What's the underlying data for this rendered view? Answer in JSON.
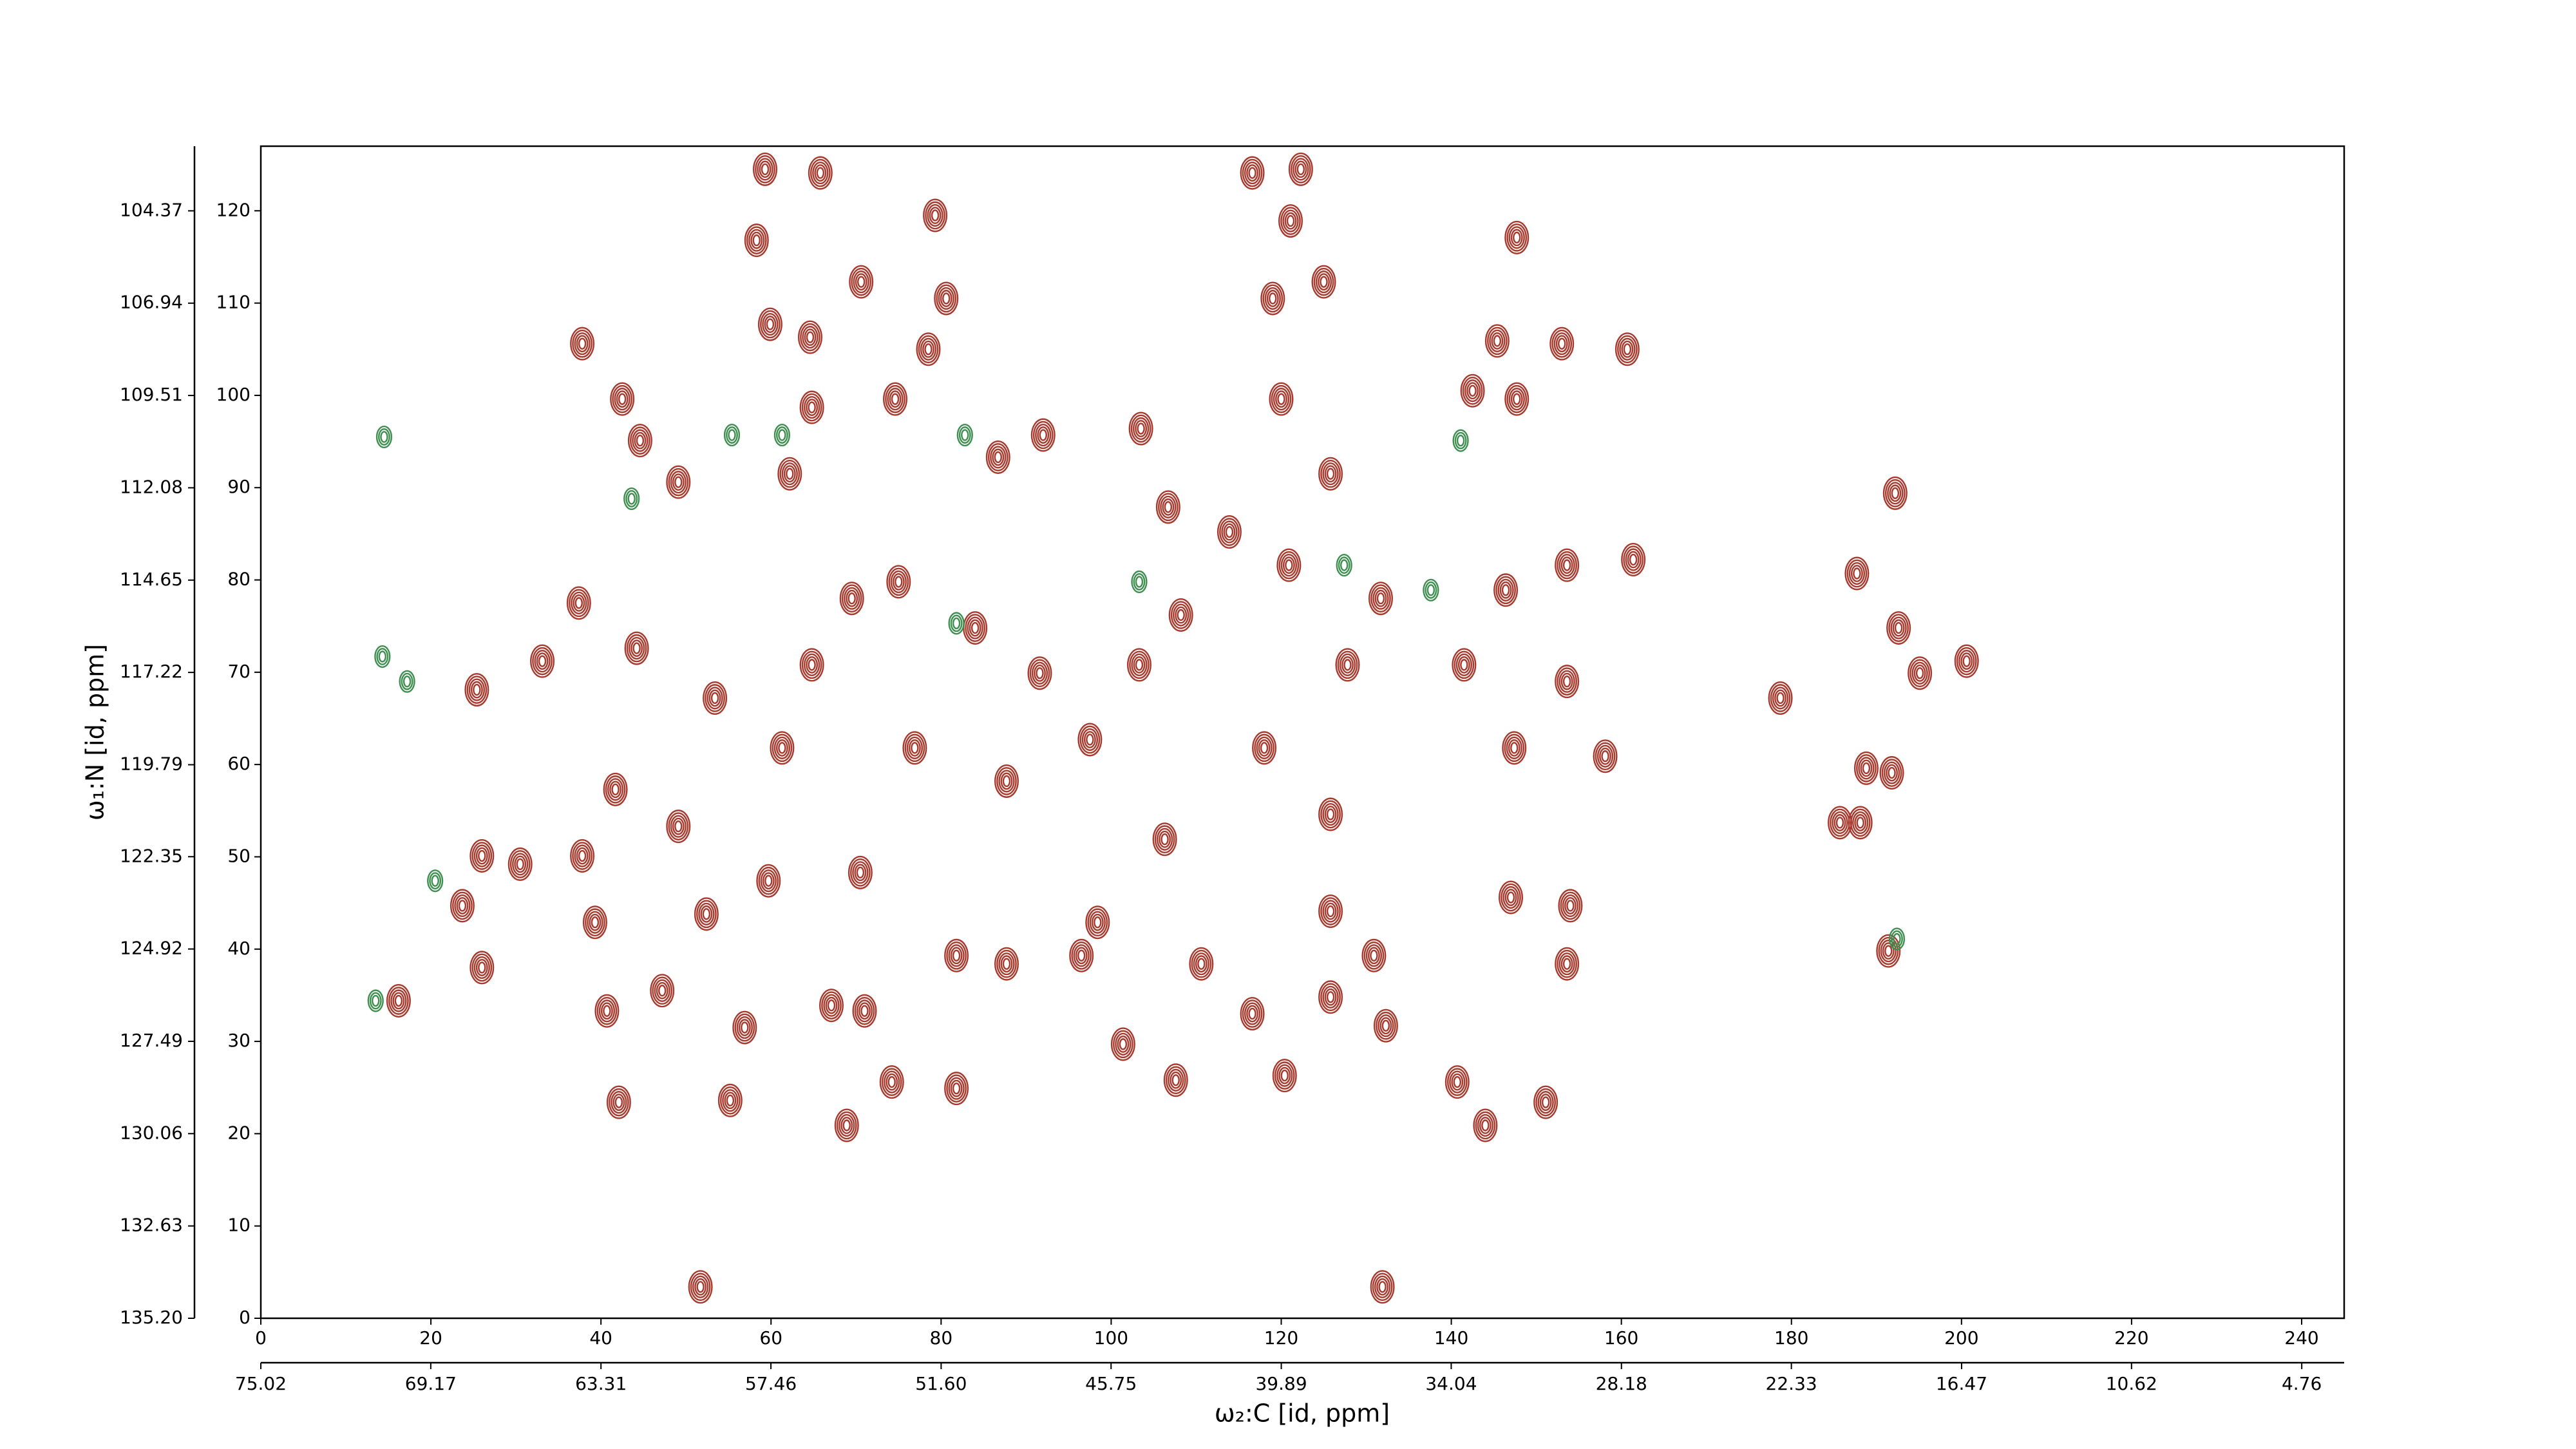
{
  "chart_data": {
    "type": "contour",
    "xlabel": "ω₂:C [id, ppm]",
    "ylabel": "ω₁:N [id, ppm]",
    "xlim": [
      0,
      245
    ],
    "ylim": [
      0,
      127
    ],
    "xticks": [
      0,
      20,
      40,
      60,
      80,
      100,
      120,
      140,
      160,
      180,
      200,
      220,
      240
    ],
    "yticks": [
      0,
      10,
      20,
      30,
      40,
      50,
      60,
      70,
      80,
      90,
      100,
      110,
      120
    ],
    "x2lim": [
      75.02,
      3.3
    ],
    "x2ticks": [
      75.02,
      69.17,
      63.31,
      57.46,
      {
        "value": 51.6,
        "label": "51.60"
      },
      45.75,
      39.89,
      34.04,
      28.18,
      22.33,
      16.47,
      10.62,
      4.76
    ],
    "y2lim": [
      135.2,
      102.57
    ],
    "y2ticks": [
      {
        "value": 135.2,
        "label": "135.20"
      },
      132.63,
      130.06,
      127.49,
      124.92,
      122.35,
      119.79,
      117.22,
      114.65,
      112.08,
      109.51,
      106.94,
      104.37
    ],
    "peaks": [
      {
        "color": "#a8392c",
        "x": [
          59.3,
          65.8,
          58.3,
          79.3,
          70.6,
          80.6,
          59.9,
          64.6,
          78.5,
          37.8,
          116.6,
          122.3,
          121.1,
          147.7,
          119.0,
          125.0,
          145.4,
          153.0,
          160.7,
          42.5,
          44.6,
          49.1,
          64.8,
          74.6,
          62.2,
          86.7,
          92.0,
          103.5,
          106.7,
          113.9,
          120.0,
          125.8,
          120.9,
          131.7,
          142.5,
          147.7,
          146.4,
          153.6,
          161.4,
          192.2,
          187.7,
          192.6,
          200.6,
          178.7,
          195.1,
          188.8,
          191.8,
          188.1,
          37.4,
          33.1,
          25.4,
          44.2,
          53.4,
          64.8,
          69.5,
          75.0,
          84.0,
          91.6,
          103.3,
          108.2,
          127.8,
          141.5,
          153.6,
          41.7,
          49.1,
          61.3,
          76.9,
          87.7,
          97.5,
          106.3,
          118.0,
          125.8,
          147.4,
          158.1,
          26.0,
          30.5,
          23.7,
          26.0,
          37.8,
          39.3,
          52.4,
          59.7,
          70.5,
          81.8,
          87.7,
          98.4,
          96.5,
          110.6,
          125.8,
          130.9,
          147.0,
          154.0,
          153.6,
          185.7,
          191.4,
          16.2,
          40.7,
          47.2,
          56.9,
          67.1,
          71.0,
          74.2,
          81.8,
          101.4,
          107.6,
          116.6,
          120.4,
          125.8,
          132.3,
          140.7,
          144.0,
          151.1,
          68.9,
          55.2,
          42.1,
          51.7,
          131.9
        ],
        "y": [
          124.5,
          124.1,
          116.8,
          119.5,
          112.3,
          110.5,
          107.7,
          106.3,
          105.0,
          105.6,
          124.1,
          124.5,
          118.9,
          117.1,
          110.5,
          112.3,
          105.9,
          105.6,
          105.0,
          99.6,
          95.1,
          90.6,
          98.7,
          99.6,
          91.5,
          93.3,
          95.7,
          96.4,
          87.9,
          85.2,
          99.6,
          91.5,
          81.6,
          78.0,
          100.5,
          99.6,
          78.9,
          81.6,
          82.2,
          89.4,
          80.7,
          74.8,
          71.2,
          67.2,
          69.9,
          59.6,
          59.1,
          53.7,
          77.5,
          71.2,
          68.1,
          72.6,
          67.2,
          70.8,
          78.0,
          79.8,
          74.8,
          69.9,
          70.8,
          76.2,
          70.8,
          70.8,
          69.0,
          57.3,
          53.3,
          61.8,
          61.8,
          58.2,
          62.7,
          51.9,
          61.8,
          54.6,
          61.8,
          60.9,
          50.1,
          49.2,
          44.7,
          38.0,
          50.1,
          42.9,
          43.8,
          47.4,
          48.3,
          39.3,
          38.4,
          42.9,
          39.3,
          38.4,
          44.1,
          39.3,
          45.6,
          44.7,
          38.4,
          53.7,
          39.8,
          34.4,
          33.3,
          35.5,
          31.5,
          33.9,
          33.3,
          25.6,
          24.9,
          29.7,
          25.8,
          33.0,
          26.3,
          34.8,
          31.7,
          25.6,
          20.9,
          23.4,
          20.9,
          23.6,
          23.4,
          3.4,
          3.4
        ]
      },
      {
        "color": "#3f8f50",
        "x": [
          14.5,
          55.4,
          61.3,
          82.8,
          127.4,
          13.5,
          20.5,
          192.4,
          141.1,
          103.3,
          81.8,
          14.3,
          17.2,
          43.6,
          137.6
        ],
        "y": [
          95.5,
          95.7,
          95.7,
          95.7,
          81.6,
          34.4,
          47.4,
          41.1,
          95.1,
          79.8,
          75.3,
          71.7,
          69.0,
          88.8,
          78.9
        ]
      }
    ]
  }
}
